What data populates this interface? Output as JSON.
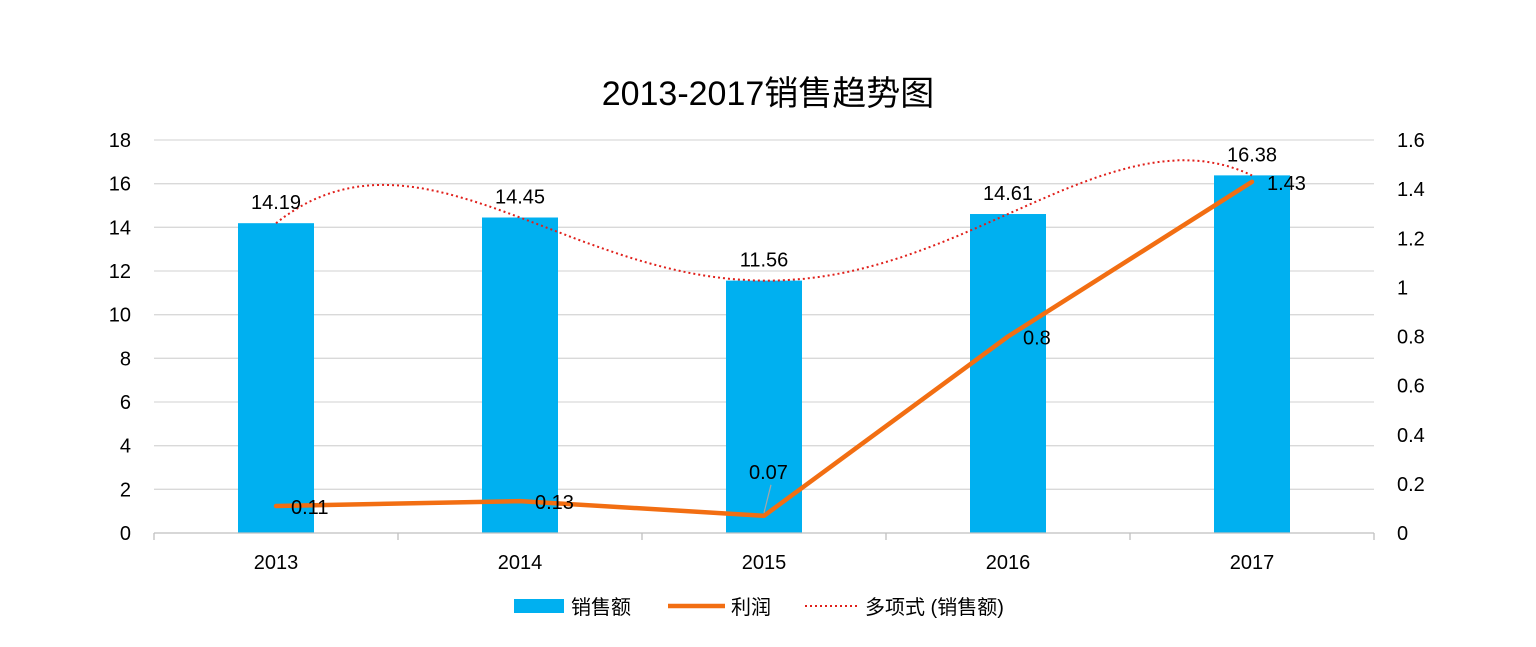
{
  "chart_data": {
    "type": "bar",
    "title": "2013-2017销售趋势图",
    "categories": [
      "2013",
      "2014",
      "2015",
      "2016",
      "2017"
    ],
    "series": [
      {
        "name": "销售额",
        "kind": "bar",
        "axis": "left",
        "color": "#00B0F0",
        "values": [
          14.19,
          14.45,
          11.56,
          14.61,
          16.38
        ]
      },
      {
        "name": "利润",
        "kind": "line",
        "axis": "right",
        "color": "#F26E12",
        "values": [
          0.11,
          0.13,
          0.07,
          0.8,
          1.43
        ]
      },
      {
        "name": "多项式 (销售额)",
        "kind": "trendline",
        "axis": "left",
        "color": "#E0201B",
        "fit": "polynomial"
      }
    ],
    "y_left": {
      "ylim": [
        0,
        18
      ],
      "ticks": [
        "0",
        "2",
        "4",
        "6",
        "8",
        "10",
        "12",
        "14",
        "16",
        "18"
      ]
    },
    "y_right": {
      "ylim": [
        0,
        1.6
      ],
      "ticks": [
        "0",
        "0.2",
        "0.4",
        "0.6",
        "0.8",
        "1",
        "1.2",
        "1.4",
        "1.6"
      ]
    },
    "grid": true,
    "legend_position": "bottom",
    "data_labels": {
      "bars": [
        "14.19",
        "14.45",
        "11.56",
        "14.61",
        "16.38"
      ],
      "line": [
        "0.11",
        "0.13",
        "0.07",
        "0.8",
        "1.43"
      ]
    }
  }
}
